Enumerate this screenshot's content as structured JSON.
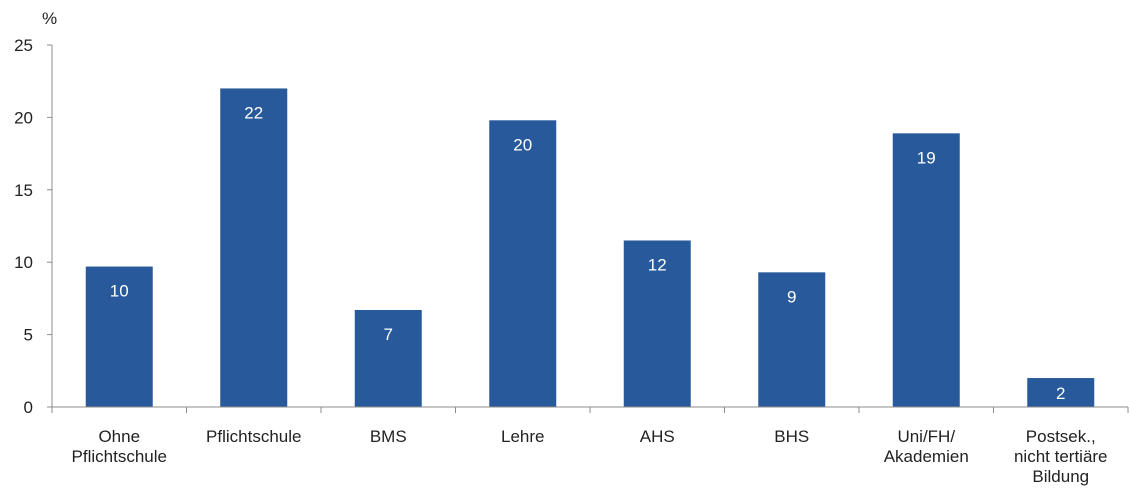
{
  "chart_data": {
    "type": "bar",
    "title": "",
    "xlabel": "",
    "ylabel": "%",
    "ylim": [
      0,
      25
    ],
    "yticks": [
      "0",
      "5",
      "10",
      "15",
      "20",
      "25"
    ],
    "grid": false,
    "legend": "none",
    "categories": [
      [
        "Ohne",
        "Pflichtschule"
      ],
      [
        "Pflichtschule"
      ],
      [
        "BMS"
      ],
      [
        "Lehre"
      ],
      [
        "AHS"
      ],
      [
        "BHS"
      ],
      [
        "Uni/FH/",
        "Akademien"
      ],
      [
        "Postsek.,",
        "nicht tertiäre",
        "Bildung"
      ]
    ],
    "values": [
      9.7,
      22.0,
      6.7,
      19.8,
      11.5,
      9.3,
      18.9,
      2.0
    ],
    "value_labels": [
      "10",
      "22",
      "7",
      "20",
      "12",
      "9",
      "19",
      "2"
    ],
    "bar_color": "#285a9b",
    "axis_color": "#8c8c8c",
    "text_color": "#222222",
    "label_color": "#ffffff"
  }
}
